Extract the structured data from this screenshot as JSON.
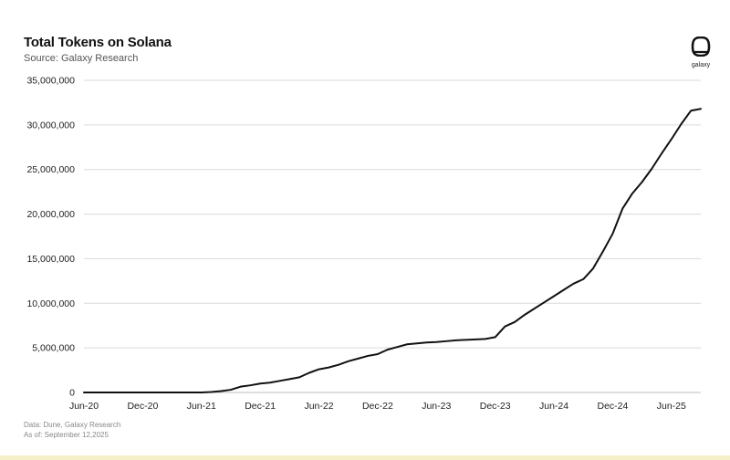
{
  "header": {
    "title": "Total Tokens on Solana",
    "subtitle": "Source: Galaxy Research"
  },
  "logo": {
    "icon": "galaxy-logo-icon",
    "text": "galaxy"
  },
  "footer": {
    "data_note": "Data: Dune, Galaxy Research",
    "as_of": "As of: September 12,2025"
  },
  "colors": {
    "line": "#111111",
    "grid": "#d9d9d9",
    "axis": "#bdbdbd",
    "tick_text": "#222222"
  },
  "chart_data": {
    "type": "line",
    "title": "Total Tokens on Solana",
    "subtitle": "Source: Galaxy Research",
    "xlabel": "",
    "ylabel": "",
    "grid": true,
    "legend": "none",
    "ylim": [
      0,
      35000000
    ],
    "xlim": [
      "2020-06",
      "2025-09"
    ],
    "x_ticks": [
      "Jun-20",
      "Dec-20",
      "Jun-21",
      "Dec-21",
      "Jun-22",
      "Dec-22",
      "Jun-23",
      "Dec-23",
      "Jun-24",
      "Dec-24",
      "Jun-25"
    ],
    "y_ticks": [
      0,
      5000000,
      10000000,
      15000000,
      20000000,
      25000000,
      30000000,
      35000000
    ],
    "y_tick_labels": [
      "0",
      "5,000,000",
      "10,000,000",
      "15,000,000",
      "20,000,000",
      "25,000,000",
      "30,000,000",
      "35,000,000"
    ],
    "series": [
      {
        "x": [
          "2020-06",
          "2020-09",
          "2020-12",
          "2021-03",
          "2021-06",
          "2021-07",
          "2021-08",
          "2021-09",
          "2021-10",
          "2021-11",
          "2021-12",
          "2022-01",
          "2022-02",
          "2022-03",
          "2022-04",
          "2022-05",
          "2022-06",
          "2022-07",
          "2022-08",
          "2022-09",
          "2022-10",
          "2022-11",
          "2022-12",
          "2023-01",
          "2023-02",
          "2023-03",
          "2023-04",
          "2023-05",
          "2023-06",
          "2023-07",
          "2023-08",
          "2023-09",
          "2023-10",
          "2023-11",
          "2023-12",
          "2024-01",
          "2024-02",
          "2024-03",
          "2024-04",
          "2024-05",
          "2024-06",
          "2024-07",
          "2024-08",
          "2024-09",
          "2024-10",
          "2024-11",
          "2024-12",
          "2025-01",
          "2025-02",
          "2025-03",
          "2025-04",
          "2025-05",
          "2025-06",
          "2025-07",
          "2025-08",
          "2025-09"
        ],
        "values": [
          0,
          0,
          0,
          0,
          0,
          50000,
          150000,
          300000,
          650000,
          800000,
          1000000,
          1100000,
          1300000,
          1500000,
          1700000,
          2200000,
          2600000,
          2800000,
          3100000,
          3500000,
          3800000,
          4100000,
          4300000,
          4800000,
          5100000,
          5400000,
          5500000,
          5600000,
          5650000,
          5750000,
          5850000,
          5900000,
          5950000,
          6000000,
          6200000,
          7400000,
          7900000,
          8700000,
          9400000,
          10100000,
          10800000,
          11500000,
          12200000,
          12700000,
          13900000,
          15800000,
          17800000,
          20600000,
          22300000,
          23600000,
          25100000,
          26800000,
          28400000,
          30100000,
          31600000,
          31800000
        ]
      }
    ]
  }
}
